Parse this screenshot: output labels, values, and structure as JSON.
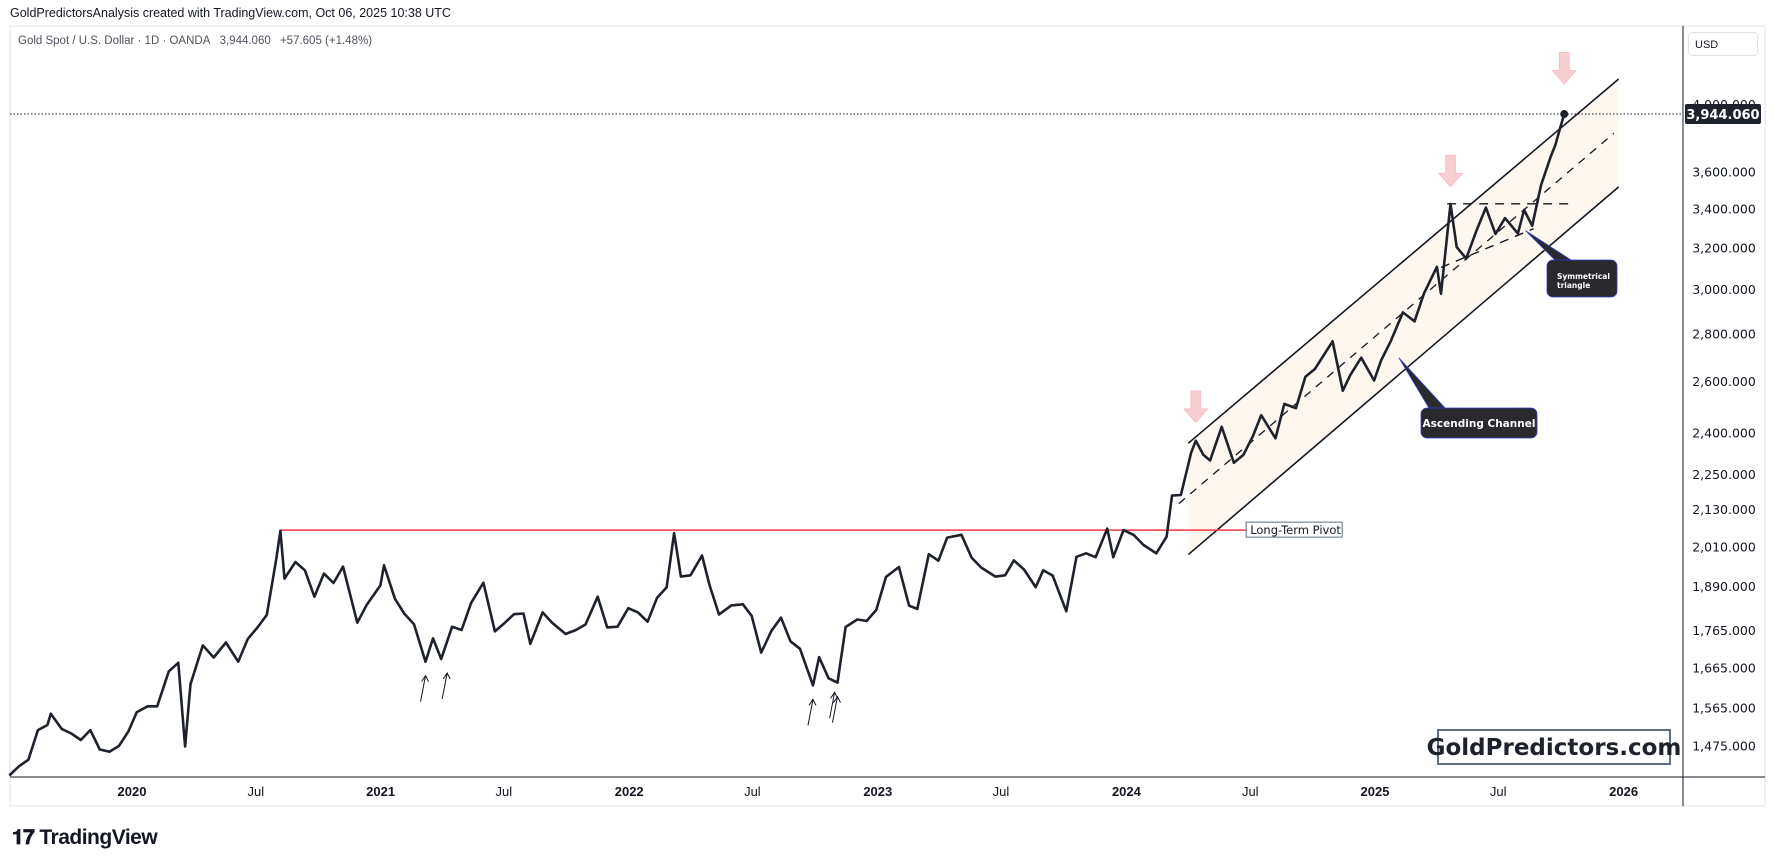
{
  "header": {
    "attribution": "GoldPredictorsAnalysis created with TradingView.com, Oct 06, 2025 10:38 UTC",
    "symbol": "Gold Spot / U.S. Dollar · 1D · OANDA",
    "last": "3,944.060",
    "change": "+57.605 (+1.48%)",
    "currency_button": "USD"
  },
  "branding": {
    "tradingview": "TradingView",
    "watermark": "GoldPredictors.com"
  },
  "colors": {
    "price": "#1e222d",
    "pivot": "#f23645",
    "channel_fill": "#fdf7ef",
    "arrow": "#f7c5ca",
    "callout": "#2a2a2e",
    "callout_border": "#2f3cc8"
  },
  "chart_data": {
    "type": "line",
    "title": "Gold Spot / U.S. Dollar · 1D · OANDA",
    "scale": "log",
    "ylim": [
      1400,
      4250
    ],
    "xlim": [
      "2019-07-01",
      "2026-03-31"
    ],
    "x_ticks": [
      {
        "date": "2020-01-01",
        "label": "2020",
        "bold": true
      },
      {
        "date": "2020-07-01",
        "label": "Jul",
        "bold": false
      },
      {
        "date": "2021-01-01",
        "label": "2021",
        "bold": true
      },
      {
        "date": "2021-07-01",
        "label": "Jul",
        "bold": false
      },
      {
        "date": "2022-01-01",
        "label": "2022",
        "bold": true
      },
      {
        "date": "2022-07-01",
        "label": "Jul",
        "bold": false
      },
      {
        "date": "2023-01-01",
        "label": "2023",
        "bold": true
      },
      {
        "date": "2023-07-01",
        "label": "Jul",
        "bold": false
      },
      {
        "date": "2024-01-01",
        "label": "2024",
        "bold": true
      },
      {
        "date": "2024-07-01",
        "label": "Jul",
        "bold": false
      },
      {
        "date": "2025-01-01",
        "label": "2025",
        "bold": true
      },
      {
        "date": "2025-07-01",
        "label": "Jul",
        "bold": false
      },
      {
        "date": "2026-01-01",
        "label": "2026",
        "bold": true
      }
    ],
    "y_ticks": [
      {
        "value": 4000,
        "label": "4,000.000"
      },
      {
        "value": 3600,
        "label": "3,600.000"
      },
      {
        "value": 3400,
        "label": "3,400.000"
      },
      {
        "value": 3200,
        "label": "3,200.000"
      },
      {
        "value": 3000,
        "label": "3,000.000"
      },
      {
        "value": 2800,
        "label": "2,800.000"
      },
      {
        "value": 2600,
        "label": "2,600.000"
      },
      {
        "value": 2400,
        "label": "2,400.000"
      },
      {
        "value": 2250,
        "label": "2,250.000"
      },
      {
        "value": 2130,
        "label": "2,130.000"
      },
      {
        "value": 2010,
        "label": "2,010.000"
      },
      {
        "value": 1890,
        "label": "1,890.000"
      },
      {
        "value": 1765,
        "label": "1,765.000"
      },
      {
        "value": 1665,
        "label": "1,665.000"
      },
      {
        "value": 1565,
        "label": "1,565.000"
      },
      {
        "value": 1475,
        "label": "1,475.000"
      }
    ],
    "last_price": {
      "value": 3944.06,
      "label": "3,944.060"
    },
    "series": [
      {
        "name": "XAUUSD close",
        "points": [
          [
            "2019-07-05",
            1410
          ],
          [
            "2019-07-19",
            1430
          ],
          [
            "2019-08-02",
            1445
          ],
          [
            "2019-08-16",
            1513
          ],
          [
            "2019-08-30",
            1525
          ],
          [
            "2019-09-04",
            1552
          ],
          [
            "2019-09-20",
            1516
          ],
          [
            "2019-10-04",
            1505
          ],
          [
            "2019-10-18",
            1490
          ],
          [
            "2019-11-01",
            1513
          ],
          [
            "2019-11-15",
            1468
          ],
          [
            "2019-11-29",
            1463
          ],
          [
            "2019-12-13",
            1476
          ],
          [
            "2019-12-27",
            1510
          ],
          [
            "2020-01-08",
            1556
          ],
          [
            "2020-01-24",
            1570
          ],
          [
            "2020-02-07",
            1570
          ],
          [
            "2020-02-24",
            1658
          ],
          [
            "2020-03-09",
            1680
          ],
          [
            "2020-03-19",
            1475
          ],
          [
            "2020-03-27",
            1625
          ],
          [
            "2020-04-14",
            1726
          ],
          [
            "2020-04-30",
            1694
          ],
          [
            "2020-05-18",
            1734
          ],
          [
            "2020-06-05",
            1683
          ],
          [
            "2020-06-19",
            1743
          ],
          [
            "2020-07-03",
            1774
          ],
          [
            "2020-07-17",
            1810
          ],
          [
            "2020-07-31",
            1975
          ],
          [
            "2020-08-06",
            2063
          ],
          [
            "2020-08-12",
            1915
          ],
          [
            "2020-08-28",
            1965
          ],
          [
            "2020-09-11",
            1940
          ],
          [
            "2020-09-25",
            1862
          ],
          [
            "2020-10-09",
            1930
          ],
          [
            "2020-10-23",
            1902
          ],
          [
            "2020-11-06",
            1951
          ],
          [
            "2020-11-27",
            1788
          ],
          [
            "2020-12-11",
            1839
          ],
          [
            "2020-12-31",
            1895
          ],
          [
            "2021-01-06",
            1955
          ],
          [
            "2021-01-22",
            1856
          ],
          [
            "2021-02-05",
            1813
          ],
          [
            "2021-02-19",
            1784
          ],
          [
            "2021-03-08",
            1683
          ],
          [
            "2021-03-19",
            1745
          ],
          [
            "2021-03-31",
            1690
          ],
          [
            "2021-04-16",
            1777
          ],
          [
            "2021-04-30",
            1768
          ],
          [
            "2021-05-14",
            1844
          ],
          [
            "2021-06-01",
            1903
          ],
          [
            "2021-06-18",
            1764
          ],
          [
            "2021-07-02",
            1787
          ],
          [
            "2021-07-16",
            1812
          ],
          [
            "2021-07-30",
            1814
          ],
          [
            "2021-08-09",
            1730
          ],
          [
            "2021-08-27",
            1817
          ],
          [
            "2021-09-10",
            1788
          ],
          [
            "2021-09-30",
            1757
          ],
          [
            "2021-10-15",
            1768
          ],
          [
            "2021-10-29",
            1783
          ],
          [
            "2021-11-16",
            1862
          ],
          [
            "2021-11-30",
            1775
          ],
          [
            "2021-12-15",
            1777
          ],
          [
            "2021-12-31",
            1829
          ],
          [
            "2022-01-14",
            1817
          ],
          [
            "2022-01-28",
            1791
          ],
          [
            "2022-02-11",
            1859
          ],
          [
            "2022-02-25",
            1889
          ],
          [
            "2022-03-08",
            2055
          ],
          [
            "2022-03-18",
            1921
          ],
          [
            "2022-04-01",
            1925
          ],
          [
            "2022-04-18",
            1985
          ],
          [
            "2022-04-29",
            1896
          ],
          [
            "2022-05-13",
            1811
          ],
          [
            "2022-05-31",
            1837
          ],
          [
            "2022-06-17",
            1840
          ],
          [
            "2022-06-30",
            1807
          ],
          [
            "2022-07-14",
            1707
          ],
          [
            "2022-07-29",
            1766
          ],
          [
            "2022-08-12",
            1802
          ],
          [
            "2022-08-26",
            1737
          ],
          [
            "2022-09-09",
            1717
          ],
          [
            "2022-09-28",
            1622
          ],
          [
            "2022-10-07",
            1695
          ],
          [
            "2022-10-21",
            1640
          ],
          [
            "2022-11-03",
            1629
          ],
          [
            "2022-11-15",
            1776
          ],
          [
            "2022-12-02",
            1797
          ],
          [
            "2022-12-16",
            1793
          ],
          [
            "2022-12-30",
            1824
          ],
          [
            "2023-01-13",
            1920
          ],
          [
            "2023-02-01",
            1950
          ],
          [
            "2023-02-16",
            1836
          ],
          [
            "2023-02-28",
            1827
          ],
          [
            "2023-03-17",
            1989
          ],
          [
            "2023-03-31",
            1969
          ],
          [
            "2023-04-13",
            2041
          ],
          [
            "2023-05-04",
            2050
          ],
          [
            "2023-05-19",
            1978
          ],
          [
            "2023-06-02",
            1948
          ],
          [
            "2023-06-23",
            1921
          ],
          [
            "2023-07-07",
            1925
          ],
          [
            "2023-07-20",
            1970
          ],
          [
            "2023-08-04",
            1942
          ],
          [
            "2023-08-21",
            1890
          ],
          [
            "2023-09-01",
            1940
          ],
          [
            "2023-09-15",
            1924
          ],
          [
            "2023-10-05",
            1820
          ],
          [
            "2023-10-20",
            1981
          ],
          [
            "2023-11-03",
            1992
          ],
          [
            "2023-11-17",
            1980
          ],
          [
            "2023-12-04",
            2070
          ],
          [
            "2023-12-13",
            1980
          ],
          [
            "2023-12-28",
            2065
          ],
          [
            "2024-01-12",
            2049
          ],
          [
            "2024-01-26",
            2018
          ],
          [
            "2024-02-14",
            1992
          ],
          [
            "2024-02-29",
            2044
          ],
          [
            "2024-03-08",
            2179
          ],
          [
            "2024-03-21",
            2181
          ],
          [
            "2024-04-05",
            2329
          ],
          [
            "2024-04-12",
            2373
          ],
          [
            "2024-04-23",
            2322
          ],
          [
            "2024-05-03",
            2301
          ],
          [
            "2024-05-20",
            2425
          ],
          [
            "2024-06-07",
            2293
          ],
          [
            "2024-06-21",
            2322
          ],
          [
            "2024-07-05",
            2391
          ],
          [
            "2024-07-17",
            2469
          ],
          [
            "2024-08-07",
            2382
          ],
          [
            "2024-08-20",
            2513
          ],
          [
            "2024-09-06",
            2496
          ],
          [
            "2024-09-20",
            2621
          ],
          [
            "2024-10-04",
            2653
          ],
          [
            "2024-10-30",
            2770
          ],
          [
            "2024-11-14",
            2565
          ],
          [
            "2024-11-25",
            2628
          ],
          [
            "2024-12-11",
            2700
          ],
          [
            "2024-12-30",
            2606
          ],
          [
            "2025-01-10",
            2689
          ],
          [
            "2025-01-24",
            2770
          ],
          [
            "2025-02-11",
            2897
          ],
          [
            "2025-02-28",
            2857
          ],
          [
            "2025-03-14",
            2984
          ],
          [
            "2025-04-02",
            3110
          ],
          [
            "2025-04-08",
            2982
          ],
          [
            "2025-04-22",
            3430
          ],
          [
            "2025-05-01",
            3207
          ],
          [
            "2025-05-15",
            3150
          ],
          [
            "2025-05-30",
            3289
          ],
          [
            "2025-06-13",
            3410
          ],
          [
            "2025-06-27",
            3273
          ],
          [
            "2025-07-11",
            3355
          ],
          [
            "2025-07-30",
            3275
          ],
          [
            "2025-08-08",
            3398
          ],
          [
            "2025-08-20",
            3315
          ],
          [
            "2025-09-02",
            3532
          ],
          [
            "2025-09-16",
            3690
          ],
          [
            "2025-09-23",
            3760
          ],
          [
            "2025-09-30",
            3858
          ],
          [
            "2025-10-06",
            3944.06
          ]
        ]
      }
    ],
    "annotations": {
      "pivot": {
        "label": "Long-Term Pivot",
        "price": 2065,
        "from": "2020-08-06",
        "to": "2024-06-25"
      },
      "channel": {
        "label": "Ascending Channel",
        "upper": [
          [
            "2024-04-01",
            2364
          ],
          [
            "2025-12-25",
            4165
          ]
        ],
        "lower": [
          [
            "2024-04-01",
            1988
          ],
          [
            "2025-12-25",
            3522
          ]
        ],
        "middle": [
          [
            "2024-03-18",
            2152
          ],
          [
            "2025-12-18",
            3828
          ]
        ]
      },
      "triangle": {
        "label": "Symmetrical triangle",
        "top": [
          [
            "2025-04-17",
            3430
          ],
          [
            "2025-10-12",
            3430
          ]
        ],
        "bottom": [
          [
            "2025-04-08",
            3107
          ],
          [
            "2025-08-22",
            3300
          ]
        ]
      },
      "high_arrows": [
        [
          "2024-04-12",
          2440
        ],
        [
          "2025-04-22",
          3520
        ],
        [
          "2025-10-06",
          4130
        ]
      ],
      "low_arrows": [
        [
          "2021-03-08",
          1683
        ],
        [
          "2021-03-31",
          1690
        ],
        [
          "2022-09-28",
          1622
        ],
        [
          "2022-10-21",
          1640
        ],
        [
          "2022-11-03",
          1629
        ]
      ]
    }
  }
}
